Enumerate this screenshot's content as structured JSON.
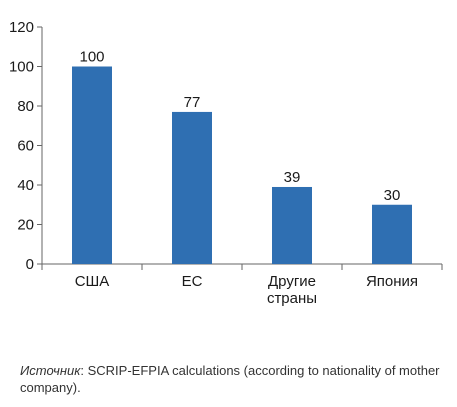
{
  "chart_data": {
    "type": "bar",
    "categories": [
      [
        "США"
      ],
      [
        "ЕС"
      ],
      [
        "Другие",
        "страны"
      ],
      [
        "Япония"
      ]
    ],
    "values": [
      100,
      77,
      39,
      30
    ],
    "data_labels": [
      "100",
      "77",
      "39",
      "30"
    ],
    "ylim": [
      0,
      120
    ],
    "yticks": [
      0,
      20,
      40,
      60,
      80,
      100,
      120
    ],
    "ytick_labels": [
      "0",
      "20",
      "40",
      "60",
      "80",
      "100",
      "120"
    ],
    "grid": false,
    "bar_color": "#2f6fb2",
    "axis_color": "#666666"
  },
  "source": {
    "label": "Источник",
    "text": ": SCRIP-EFPIA calculations (according to nationality of mother company)."
  }
}
